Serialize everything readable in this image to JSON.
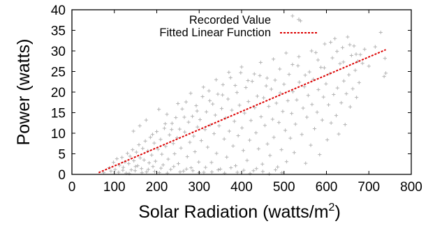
{
  "chart_data": {
    "type": "scatter",
    "xlabel": "Solar Radiation (watts/m",
    "xlabel_superscript": "2",
    "xlabel_suffix": ")",
    "ylabel": "Power (watts)",
    "xlim": [
      0,
      800
    ],
    "ylim": [
      0,
      40
    ],
    "x_ticks": [
      0,
      100,
      200,
      300,
      400,
      500,
      600,
      700,
      800
    ],
    "y_ticks": [
      0,
      5,
      10,
      15,
      20,
      25,
      30,
      35,
      40
    ],
    "grid": false,
    "legend_position": "top-right",
    "colors": {
      "recorded": "#b4b4b4",
      "fit": "#dd0000",
      "axis": "#000000"
    },
    "series": [
      {
        "name": "Recorded Value",
        "marker": "plus",
        "points": [
          [
            75,
            0.4
          ],
          [
            88,
            1.6
          ],
          [
            92,
            0.8
          ],
          [
            98,
            2.9
          ],
          [
            102,
            1.2
          ],
          [
            106,
            3.8
          ],
          [
            110,
            0.5
          ],
          [
            112,
            2.2
          ],
          [
            118,
            4.1
          ],
          [
            121,
            1.7
          ],
          [
            125,
            3.0
          ],
          [
            128,
            0.3
          ],
          [
            131,
            5.1
          ],
          [
            134,
            2.6
          ],
          [
            137,
            4.4
          ],
          [
            140,
            1.1
          ],
          [
            143,
            6.0
          ],
          [
            146,
            3.3
          ],
          [
            149,
            0.9
          ],
          [
            152,
            5.4
          ],
          [
            155,
            2.1
          ],
          [
            158,
            7.2
          ],
          [
            161,
            4.0
          ],
          [
            164,
            1.4
          ],
          [
            167,
            6.3
          ],
          [
            170,
            3.5
          ],
          [
            173,
            8.1
          ],
          [
            176,
            0.6
          ],
          [
            179,
            5.7
          ],
          [
            182,
            2.8
          ],
          [
            185,
            9.0
          ],
          [
            188,
            4.7
          ],
          [
            191,
            1.9
          ],
          [
            194,
            7.6
          ],
          [
            197,
            3.2
          ],
          [
            200,
            10.4
          ],
          [
            203,
            6.1
          ],
          [
            206,
            0.4
          ],
          [
            209,
            8.5
          ],
          [
            212,
            4.9
          ],
          [
            215,
            2.3
          ],
          [
            218,
            11.2
          ],
          [
            221,
            6.8
          ],
          [
            224,
            14.6
          ],
          [
            227,
            3.7
          ],
          [
            230,
            9.6
          ],
          [
            233,
            1.2
          ],
          [
            236,
            12.4
          ],
          [
            239,
            7.5
          ],
          [
            242,
            5.0
          ],
          [
            245,
            13.8
          ],
          [
            248,
            8.9
          ],
          [
            251,
            2.6
          ],
          [
            254,
            11.0
          ],
          [
            257,
            6.4
          ],
          [
            260,
            15.9
          ],
          [
            263,
            0.8
          ],
          [
            266,
            10.3
          ],
          [
            269,
            17.6
          ],
          [
            272,
            4.3
          ],
          [
            275,
            12.7
          ],
          [
            278,
            7.8
          ],
          [
            281,
            1.6
          ],
          [
            284,
            14.1
          ],
          [
            287,
            9.3
          ],
          [
            290,
            5.5
          ],
          [
            293,
            16.7
          ],
          [
            296,
            11.5
          ],
          [
            299,
            3.0
          ],
          [
            302,
            13.3
          ],
          [
            305,
            8.2
          ],
          [
            308,
            18.9
          ],
          [
            311,
            0.5
          ],
          [
            314,
            10.9
          ],
          [
            317,
            15.2
          ],
          [
            320,
            6.6
          ],
          [
            323,
            20.3
          ],
          [
            326,
            12.0
          ],
          [
            329,
            2.9
          ],
          [
            332,
            17.1
          ],
          [
            335,
            9.9
          ],
          [
            338,
            14.4
          ],
          [
            341,
            5.1
          ],
          [
            344,
            19.5
          ],
          [
            347,
            11.8
          ],
          [
            350,
            1.3
          ],
          [
            353,
            16.0
          ],
          [
            356,
            21.8
          ],
          [
            359,
            8.6
          ],
          [
            362,
            13.7
          ],
          [
            365,
            4.2
          ],
          [
            368,
            18.3
          ],
          [
            371,
            10.5
          ],
          [
            374,
            23.5
          ],
          [
            377,
            15.6
          ],
          [
            380,
            6.9
          ],
          [
            383,
            12.9
          ],
          [
            386,
            2.1
          ],
          [
            389,
            19.9
          ],
          [
            392,
            9.4
          ],
          [
            395,
            16.8
          ],
          [
            398,
            24.7
          ],
          [
            401,
            11.3
          ],
          [
            404,
            5.8
          ],
          [
            407,
            14.9
          ],
          [
            410,
            21.1
          ],
          [
            413,
            3.4
          ],
          [
            416,
            17.7
          ],
          [
            419,
            8.3
          ],
          [
            422,
            13.1
          ],
          [
            425,
            22.6
          ],
          [
            428,
            0.9
          ],
          [
            431,
            16.2
          ],
          [
            434,
            10.1
          ],
          [
            437,
            19.0
          ],
          [
            440,
            6.2
          ],
          [
            443,
            24.0
          ],
          [
            446,
            14.0
          ],
          [
            449,
            2.5
          ],
          [
            452,
            18.6
          ],
          [
            455,
            11.9
          ],
          [
            458,
            21.5
          ],
          [
            461,
            7.4
          ],
          [
            464,
            16.5
          ],
          [
            467,
            4.6
          ],
          [
            470,
            20.7
          ],
          [
            473,
            13.4
          ],
          [
            476,
            9.0
          ],
          [
            479,
            22.9
          ],
          [
            482,
            17.3
          ],
          [
            485,
            1.8
          ],
          [
            488,
            12.6
          ],
          [
            491,
            19.8
          ],
          [
            494,
            6.0
          ],
          [
            497,
            15.3
          ],
          [
            500,
            21.9
          ],
          [
            503,
            10.7
          ],
          [
            506,
            3.1
          ],
          [
            509,
            17.9
          ],
          [
            512,
            24.3
          ],
          [
            515,
            8.8
          ],
          [
            518,
            14.8
          ],
          [
            521,
            20.1
          ],
          [
            524,
            5.3
          ],
          [
            527,
            12.2
          ],
          [
            530,
            18.1
          ],
          [
            533,
            26.4
          ],
          [
            536,
            22.4
          ],
          [
            539,
            37.3
          ],
          [
            542,
            9.7
          ],
          [
            545,
            16.1
          ],
          [
            548,
            21.3
          ],
          [
            551,
            2.7
          ],
          [
            554,
            13.9
          ],
          [
            557,
            19.2
          ],
          [
            560,
            24.9
          ],
          [
            563,
            7.1
          ],
          [
            566,
            17.0
          ],
          [
            569,
            23.1
          ],
          [
            572,
            11.1
          ],
          [
            575,
            29.6
          ],
          [
            578,
            15.1
          ],
          [
            581,
            20.6
          ],
          [
            584,
            4.8
          ],
          [
            587,
            26.0
          ],
          [
            590,
            13.2
          ],
          [
            593,
            18.8
          ],
          [
            596,
            31.7
          ],
          [
            599,
            22.0
          ],
          [
            602,
            8.4
          ],
          [
            605,
            16.9
          ],
          [
            608,
            24.5
          ],
          [
            611,
            12.5
          ],
          [
            614,
            28.3
          ],
          [
            617,
            19.4
          ],
          [
            620,
            33.0
          ],
          [
            623,
            14.3
          ],
          [
            626,
            21.0
          ],
          [
            629,
            9.8
          ],
          [
            632,
            26.9
          ],
          [
            635,
            17.4
          ],
          [
            638,
            30.8
          ],
          [
            641,
            22.7
          ],
          [
            644,
            12.1
          ],
          [
            647,
            19.6
          ],
          [
            650,
            33.4
          ],
          [
            653,
            24.2
          ],
          [
            656,
            16.4
          ],
          [
            659,
            28.9
          ],
          [
            662,
            20.8
          ],
          [
            665,
            31.2
          ],
          [
            668,
            25.3
          ],
          [
            671,
            18.7
          ],
          [
            674,
            27.5
          ],
          [
            677,
            22.3
          ],
          [
            680,
            29.1
          ],
          [
            690,
            30.4
          ],
          [
            700,
            26.3
          ],
          [
            715,
            31.0
          ],
          [
            728,
            34.5
          ],
          [
            736,
            23.8
          ],
          [
            740,
            24.6
          ],
          [
            738,
            28.2
          ],
          [
            120,
            1.0
          ],
          [
            135,
            0.2
          ],
          [
            150,
            1.9
          ],
          [
            165,
            0.4
          ],
          [
            180,
            1.2
          ],
          [
            195,
            0.7
          ],
          [
            210,
            1.5
          ],
          [
            225,
            0.3
          ],
          [
            240,
            1.9
          ],
          [
            255,
            0.6
          ],
          [
            270,
            1.3
          ],
          [
            285,
            0.9
          ],
          [
            300,
            0.4
          ],
          [
            315,
            1.7
          ],
          [
            330,
            0.6
          ],
          [
            345,
            1.1
          ],
          [
            360,
            0.3
          ],
          [
            375,
            1.6
          ],
          [
            390,
            0.5
          ],
          [
            405,
            1.0
          ],
          [
            420,
            0.2
          ],
          [
            435,
            1.4
          ],
          [
            450,
            0.7
          ],
          [
            465,
            0.1
          ],
          [
            480,
            1.1
          ],
          [
            495,
            0.4
          ],
          [
            145,
            10.5
          ],
          [
            160,
            11.8
          ],
          [
            175,
            13.2
          ],
          [
            190,
            9.7
          ],
          [
            205,
            15.8
          ],
          [
            220,
            12.3
          ],
          [
            235,
            10.9
          ],
          [
            250,
            17.2
          ],
          [
            265,
            13.9
          ],
          [
            280,
            19.7
          ],
          [
            295,
            15.4
          ],
          [
            310,
            21.2
          ],
          [
            325,
            17.9
          ],
          [
            340,
            23.0
          ],
          [
            355,
            19.3
          ],
          [
            370,
            24.8
          ],
          [
            385,
            21.6
          ],
          [
            400,
            26.1
          ],
          [
            415,
            22.8
          ],
          [
            430,
            24.4
          ],
          [
            445,
            27.2
          ],
          [
            460,
            23.4
          ],
          [
            475,
            28.0
          ],
          [
            490,
            25.6
          ],
          [
            505,
            29.5
          ],
          [
            520,
            26.7
          ],
          [
            535,
            28.6
          ],
          [
            550,
            24.1
          ],
          [
            565,
            30.0
          ],
          [
            580,
            27.8
          ],
          [
            595,
            25.9
          ],
          [
            610,
            32.1
          ],
          [
            625,
            29.9
          ],
          [
            640,
            27.3
          ],
          [
            655,
            31.5
          ],
          [
            670,
            29.2
          ],
          [
            685,
            27.0
          ],
          [
            520,
            38.5
          ]
        ]
      },
      {
        "name": "Fitted Linear Function",
        "style": "dashed-line",
        "slope": 0.04413,
        "intercept": -2.36,
        "x_range": [
          63,
          740
        ]
      }
    ]
  }
}
